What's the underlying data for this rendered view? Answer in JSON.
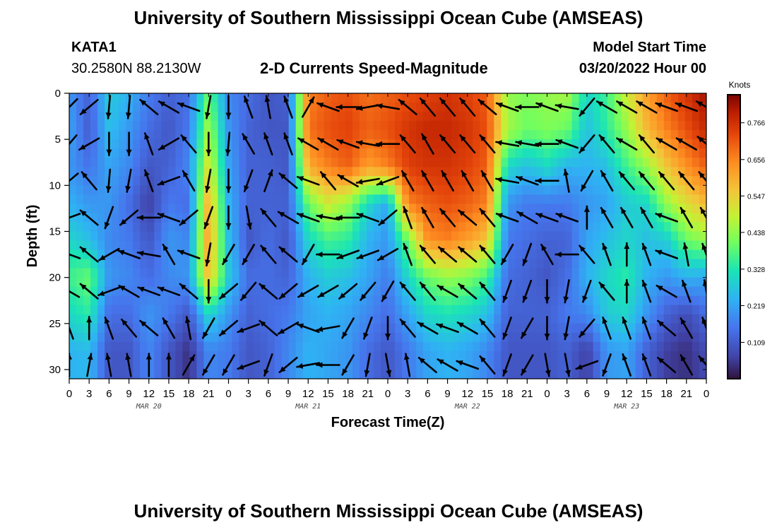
{
  "page": {
    "title_top": "University of Southern Mississippi Ocean Cube (AMSEAS)",
    "title_bottom": "University of Southern Mississippi Ocean Cube (AMSEAS)",
    "station": "KATA1",
    "coords": "30.2580N  88.2130W",
    "model_start_label": "Model Start Time",
    "model_start_value": "03/20/2022 Hour 00"
  },
  "chart_data": {
    "type": "heatmap",
    "title": "2-D Currents Speed-Magnitude",
    "xlabel": "Forecast Time(Z)",
    "ylabel": "Depth (ft)",
    "ylim": [
      0,
      31
    ],
    "y_inverted": true,
    "x_ticks": [
      "0",
      "3",
      "6",
      "9",
      "12",
      "15",
      "18",
      "21",
      "0",
      "3",
      "6",
      "9",
      "12",
      "15",
      "18",
      "21",
      "0",
      "3",
      "6",
      "9",
      "12",
      "15",
      "18",
      "21",
      "0",
      "3",
      "6",
      "9",
      "12",
      "15",
      "18",
      "21",
      "0"
    ],
    "y_ticks": [
      0,
      5,
      10,
      15,
      20,
      25,
      30
    ],
    "date_labels": [
      "MAR 20",
      "MAR 21",
      "MAR 22",
      "MAR 23"
    ],
    "colorbar": {
      "unit": "Knots",
      "ticks": [
        "0.766",
        "0.656",
        "0.547",
        "0.438",
        "0.328",
        "0.219",
        "0.109"
      ],
      "range": [
        0,
        0.85
      ]
    },
    "vectors_shown": true,
    "profile_depths_ft": [
      0,
      4,
      8,
      12,
      16,
      20,
      24,
      28
    ],
    "speed_profiles_by_hour": [
      {
        "hour": 0,
        "speed": [
          0.2,
          0.22,
          0.2,
          0.24,
          0.3,
          0.36,
          0.3,
          0.24
        ]
      },
      {
        "hour": 3,
        "speed": [
          0.12,
          0.11,
          0.15,
          0.2,
          0.26,
          0.4,
          0.34,
          0.25
        ]
      },
      {
        "hour": 6,
        "speed": [
          0.28,
          0.26,
          0.22,
          0.2,
          0.18,
          0.2,
          0.14,
          0.1
        ]
      },
      {
        "hour": 9,
        "speed": [
          0.24,
          0.2,
          0.18,
          0.14,
          0.16,
          0.18,
          0.14,
          0.1
        ]
      },
      {
        "hour": 12,
        "speed": [
          0.16,
          0.14,
          0.1,
          0.06,
          0.1,
          0.14,
          0.2,
          0.18
        ]
      },
      {
        "hour": 15,
        "speed": [
          0.12,
          0.1,
          0.12,
          0.16,
          0.2,
          0.18,
          0.16,
          0.1
        ]
      },
      {
        "hour": 18,
        "speed": [
          0.14,
          0.16,
          0.18,
          0.14,
          0.18,
          0.2,
          0.1,
          0.04
        ]
      },
      {
        "hour": 21,
        "speed": [
          0.4,
          0.46,
          0.52,
          0.6,
          0.62,
          0.58,
          0.3,
          0.18
        ]
      },
      {
        "hour": 24,
        "speed": [
          0.18,
          0.2,
          0.22,
          0.24,
          0.26,
          0.28,
          0.2,
          0.16
        ]
      },
      {
        "hour": 27,
        "speed": [
          0.14,
          0.12,
          0.12,
          0.12,
          0.1,
          0.14,
          0.12,
          0.1
        ]
      },
      {
        "hour": 30,
        "speed": [
          0.1,
          0.1,
          0.12,
          0.12,
          0.14,
          0.14,
          0.14,
          0.12
        ]
      },
      {
        "hour": 33,
        "speed": [
          0.12,
          0.1,
          0.1,
          0.12,
          0.1,
          0.12,
          0.16,
          0.18
        ]
      },
      {
        "hour": 36,
        "speed": [
          0.66,
          0.68,
          0.6,
          0.4,
          0.3,
          0.24,
          0.22,
          0.24
        ]
      },
      {
        "hour": 39,
        "speed": [
          0.7,
          0.72,
          0.66,
          0.5,
          0.36,
          0.28,
          0.24,
          0.22
        ]
      },
      {
        "hour": 42,
        "speed": [
          0.72,
          0.74,
          0.7,
          0.44,
          0.34,
          0.26,
          0.22,
          0.2
        ]
      },
      {
        "hour": 45,
        "speed": [
          0.68,
          0.7,
          0.62,
          0.3,
          0.24,
          0.22,
          0.18,
          0.14
        ]
      },
      {
        "hour": 48,
        "speed": [
          0.7,
          0.72,
          0.66,
          0.22,
          0.2,
          0.16,
          0.14,
          0.1
        ]
      },
      {
        "hour": 51,
        "speed": [
          0.72,
          0.76,
          0.74,
          0.66,
          0.4,
          0.3,
          0.22,
          0.16
        ]
      },
      {
        "hour": 54,
        "speed": [
          0.74,
          0.78,
          0.76,
          0.7,
          0.64,
          0.4,
          0.3,
          0.22
        ]
      },
      {
        "hour": 57,
        "speed": [
          0.76,
          0.78,
          0.76,
          0.72,
          0.66,
          0.44,
          0.32,
          0.24
        ]
      },
      {
        "hour": 60,
        "speed": [
          0.74,
          0.76,
          0.74,
          0.7,
          0.62,
          0.42,
          0.3,
          0.22
        ]
      },
      {
        "hour": 63,
        "speed": [
          0.7,
          0.72,
          0.7,
          0.66,
          0.56,
          0.36,
          0.26,
          0.18
        ]
      },
      {
        "hour": 66,
        "speed": [
          0.44,
          0.46,
          0.3,
          0.2,
          0.16,
          0.14,
          0.12,
          0.1
        ]
      },
      {
        "hour": 69,
        "speed": [
          0.42,
          0.4,
          0.26,
          0.16,
          0.14,
          0.12,
          0.12,
          0.1
        ]
      },
      {
        "hour": 72,
        "speed": [
          0.44,
          0.42,
          0.3,
          0.16,
          0.12,
          0.1,
          0.12,
          0.1
        ]
      },
      {
        "hour": 75,
        "speed": [
          0.46,
          0.4,
          0.24,
          0.16,
          0.12,
          0.14,
          0.16,
          0.12
        ]
      },
      {
        "hour": 78,
        "speed": [
          0.3,
          0.26,
          0.24,
          0.2,
          0.22,
          0.24,
          0.18,
          0.06
        ]
      },
      {
        "hour": 81,
        "speed": [
          0.36,
          0.34,
          0.26,
          0.22,
          0.26,
          0.3,
          0.28,
          0.2
        ]
      },
      {
        "hour": 84,
        "speed": [
          0.5,
          0.44,
          0.36,
          0.28,
          0.3,
          0.34,
          0.3,
          0.22
        ]
      },
      {
        "hour": 87,
        "speed": [
          0.62,
          0.58,
          0.44,
          0.3,
          0.26,
          0.24,
          0.2,
          0.12
        ]
      },
      {
        "hour": 90,
        "speed": [
          0.7,
          0.66,
          0.56,
          0.44,
          0.28,
          0.2,
          0.12,
          0.06
        ]
      },
      {
        "hour": 93,
        "speed": [
          0.76,
          0.72,
          0.64,
          0.52,
          0.4,
          0.24,
          0.08,
          0.04
        ]
      },
      {
        "hour": 96,
        "speed": [
          0.82,
          0.78,
          0.7,
          0.58,
          0.44,
          0.22,
          0.14,
          0.08
        ]
      }
    ],
    "vector_angles_deg_by_hour": [
      {
        "hour": 0,
        "angle": [
          135,
          130,
          140,
          160,
          200,
          210,
          250,
          270
        ]
      },
      {
        "hour": 3,
        "angle": [
          140,
          150,
          230,
          220,
          220,
          220,
          270,
          280
        ]
      },
      {
        "hour": 6,
        "angle": [
          95,
          90,
          95,
          110,
          150,
          160,
          250,
          260
        ]
      },
      {
        "hour": 9,
        "angle": [
          95,
          90,
          100,
          140,
          200,
          210,
          230,
          260
        ]
      },
      {
        "hour": 12,
        "angle": [
          220,
          250,
          250,
          180,
          190,
          200,
          220,
          270
        ]
      },
      {
        "hour": 15,
        "angle": [
          210,
          150,
          160,
          200,
          240,
          200,
          240,
          270
        ]
      },
      {
        "hour": 18,
        "angle": [
          200,
          230,
          240,
          140,
          200,
          220,
          260,
          300
        ]
      },
      {
        "hour": 21,
        "angle": [
          100,
          90,
          100,
          110,
          100,
          90,
          120,
          120
        ]
      },
      {
        "hour": 24,
        "angle": [
          90,
          95,
          90,
          90,
          120,
          140,
          140,
          120
        ]
      },
      {
        "hour": 27,
        "angle": [
          250,
          240,
          110,
          80,
          120,
          130,
          160,
          160
        ]
      },
      {
        "hour": 30,
        "angle": [
          260,
          250,
          290,
          230,
          230,
          220,
          220,
          110
        ]
      },
      {
        "hour": 33,
        "angle": [
          250,
          250,
          220,
          210,
          220,
          140,
          150,
          140
        ]
      },
      {
        "hour": 36,
        "angle": [
          300,
          210,
          200,
          200,
          120,
          150,
          200,
          170
        ]
      },
      {
        "hour": 39,
        "angle": [
          200,
          210,
          230,
          190,
          180,
          150,
          170,
          180
        ]
      },
      {
        "hour": 42,
        "angle": [
          180,
          200,
          210,
          180,
          160,
          140,
          120,
          120
        ]
      },
      {
        "hour": 45,
        "angle": [
          170,
          190,
          170,
          200,
          160,
          130,
          110,
          100
        ]
      },
      {
        "hour": 48,
        "angle": [
          190,
          180,
          160,
          140,
          150,
          120,
          90,
          80
        ]
      },
      {
        "hour": 51,
        "angle": [
          220,
          230,
          240,
          250,
          250,
          230,
          230,
          260
        ]
      },
      {
        "hour": 54,
        "angle": [
          230,
          240,
          240,
          240,
          230,
          230,
          210,
          220
        ]
      },
      {
        "hour": 57,
        "angle": [
          230,
          230,
          240,
          230,
          220,
          210,
          200,
          210
        ]
      },
      {
        "hour": 60,
        "angle": [
          230,
          230,
          240,
          220,
          220,
          220,
          210,
          200
        ]
      },
      {
        "hour": 63,
        "angle": [
          220,
          230,
          240,
          230,
          230,
          230,
          230,
          230
        ]
      },
      {
        "hour": 66,
        "angle": [
          200,
          190,
          190,
          200,
          120,
          110,
          110,
          110
        ]
      },
      {
        "hour": 69,
        "angle": [
          180,
          190,
          200,
          210,
          110,
          110,
          120,
          120
        ]
      },
      {
        "hour": 72,
        "angle": [
          200,
          180,
          180,
          200,
          240,
          90,
          90,
          80
        ]
      },
      {
        "hour": 75,
        "angle": [
          190,
          200,
          260,
          200,
          180,
          100,
          100,
          80
        ]
      },
      {
        "hour": 78,
        "angle": [
          130,
          130,
          120,
          270,
          230,
          110,
          130,
          160
        ]
      },
      {
        "hour": 81,
        "angle": [
          210,
          230,
          240,
          240,
          250,
          230,
          250,
          110
        ]
      },
      {
        "hour": 84,
        "angle": [
          210,
          210,
          230,
          240,
          270,
          270,
          250,
          250
        ]
      },
      {
        "hour": 87,
        "angle": [
          210,
          230,
          230,
          240,
          250,
          250,
          250,
          250
        ]
      },
      {
        "hour": 90,
        "angle": [
          200,
          210,
          230,
          200,
          200,
          210,
          220,
          220
        ]
      },
      {
        "hour": 93,
        "angle": [
          200,
          210,
          230,
          240,
          260,
          250,
          240,
          240
        ]
      },
      {
        "hour": 96,
        "angle": [
          210,
          220,
          230,
          240,
          250,
          260,
          250,
          230
        ]
      }
    ]
  }
}
